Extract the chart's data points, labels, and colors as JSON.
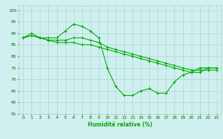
{
  "xlabel": "Humidité relative (%)",
  "bg_color": "#d0f0f0",
  "grid_color": "#b0d8d8",
  "line_color": "#00aa00",
  "tick_color": "#006600",
  "xlim": [
    -0.5,
    23.5
  ],
  "ylim": [
    55,
    102
  ],
  "yticks": [
    55,
    60,
    65,
    70,
    75,
    80,
    85,
    90,
    95,
    100
  ],
  "xticks": [
    0,
    1,
    2,
    3,
    4,
    5,
    6,
    7,
    8,
    9,
    10,
    11,
    12,
    13,
    14,
    15,
    16,
    17,
    18,
    19,
    20,
    21,
    22,
    23
  ],
  "series": [
    {
      "x": [
        0,
        1,
        2,
        3,
        4,
        5,
        6,
        7,
        8,
        9,
        10,
        11,
        12,
        13,
        14,
        15,
        16,
        17,
        18,
        19,
        20,
        21,
        22,
        23
      ],
      "y": [
        88,
        90,
        88,
        88,
        88,
        91,
        94,
        93,
        91,
        88,
        75,
        67,
        63,
        63,
        65,
        66,
        64,
        64,
        69,
        72,
        73,
        75,
        75,
        75
      ]
    },
    {
      "x": [
        0,
        1,
        2,
        3,
        4,
        5,
        6,
        7,
        8,
        9,
        10,
        11,
        12,
        13,
        14,
        15,
        16,
        17,
        18,
        19,
        20,
        21,
        22,
        23
      ],
      "y": [
        88,
        89,
        88,
        87,
        87,
        87,
        88,
        88,
        87,
        86,
        84,
        83,
        82,
        81,
        80,
        79,
        78,
        77,
        76,
        75,
        74,
        74,
        74,
        74
      ]
    },
    {
      "x": [
        0,
        1,
        2,
        3,
        4,
        5,
        6,
        7,
        8,
        9,
        10,
        11,
        12,
        13,
        14,
        15,
        16,
        17,
        18,
        19,
        20,
        21,
        22,
        23
      ],
      "y": [
        88,
        89,
        88,
        87,
        86,
        86,
        86,
        85,
        85,
        84,
        83,
        82,
        81,
        80,
        79,
        78,
        77,
        76,
        75,
        74,
        73,
        73,
        75,
        75
      ]
    }
  ]
}
